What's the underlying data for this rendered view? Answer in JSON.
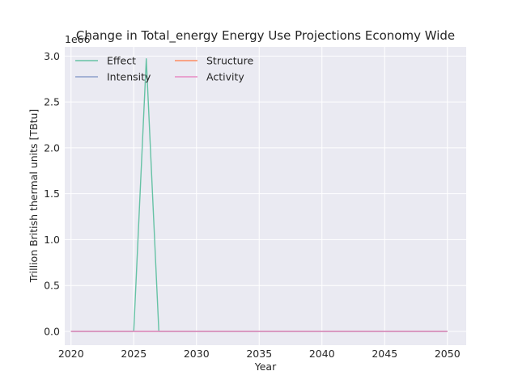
{
  "chart_data": {
    "type": "line",
    "title": "Change in Total_energy Energy Use Projections Economy Wide",
    "xlabel": "Year",
    "ylabel": "Trillion British thermal units [TBtu]",
    "y_offset_label": "1e66",
    "xlim": [
      2019.5,
      2051.5
    ],
    "ylim": [
      -0.15,
      3.1
    ],
    "x_ticks": [
      2020,
      2025,
      2030,
      2035,
      2040,
      2045,
      2050
    ],
    "x_tick_labels": [
      "2020",
      "2025",
      "2030",
      "2035",
      "2040",
      "2045",
      "2050"
    ],
    "y_ticks": [
      0.0,
      0.5,
      1.0,
      1.5,
      2.0,
      2.5,
      3.0
    ],
    "y_tick_labels": [
      "0.0",
      "0.5",
      "1.0",
      "1.5",
      "2.0",
      "2.5",
      "3.0"
    ],
    "grid": true,
    "legend_position": "top-left",
    "legend_columns": 2,
    "background_color": "#eaeaf2",
    "grid_color": "#ffffff",
    "x": [
      2020,
      2021,
      2022,
      2023,
      2024,
      2025,
      2026,
      2027,
      2028,
      2029,
      2030,
      2031,
      2032,
      2033,
      2034,
      2035,
      2036,
      2037,
      2038,
      2039,
      2040,
      2041,
      2042,
      2043,
      2044,
      2045,
      2046,
      2047,
      2048,
      2049,
      2050
    ],
    "series": [
      {
        "name": "Effect",
        "color": "#66c2a5",
        "values": [
          0,
          0,
          0,
          0,
          0,
          0,
          2.97,
          0,
          0,
          0,
          0,
          0,
          0,
          0,
          0,
          0,
          0,
          0,
          0,
          0,
          0,
          0,
          0,
          0,
          0,
          0,
          0,
          0,
          0,
          0,
          0
        ]
      },
      {
        "name": "Structure",
        "color": "#fc8d62",
        "values": [
          0,
          0,
          0,
          0,
          0,
          0,
          0,
          0,
          0,
          0,
          0,
          0,
          0,
          0,
          0,
          0,
          0,
          0,
          0,
          0,
          0,
          0,
          0,
          0,
          0,
          0,
          0,
          0,
          0,
          0,
          0
        ]
      },
      {
        "name": "Intensity",
        "color": "#8da0cb",
        "values": [
          0,
          0,
          0,
          0,
          0,
          0,
          0,
          0,
          0,
          0,
          0,
          0,
          0,
          0,
          0,
          0,
          0,
          0,
          0,
          0,
          0,
          0,
          0,
          0,
          0,
          0,
          0,
          0,
          0,
          0,
          0
        ]
      },
      {
        "name": "Activity",
        "color": "#e78ac3",
        "values": [
          0,
          0,
          0,
          0,
          0,
          0,
          0,
          0,
          0,
          0,
          0,
          0,
          0,
          0,
          0,
          0,
          0,
          0,
          0,
          0,
          0,
          0,
          0,
          0,
          0,
          0,
          0,
          0,
          0,
          0,
          0
        ]
      }
    ]
  }
}
